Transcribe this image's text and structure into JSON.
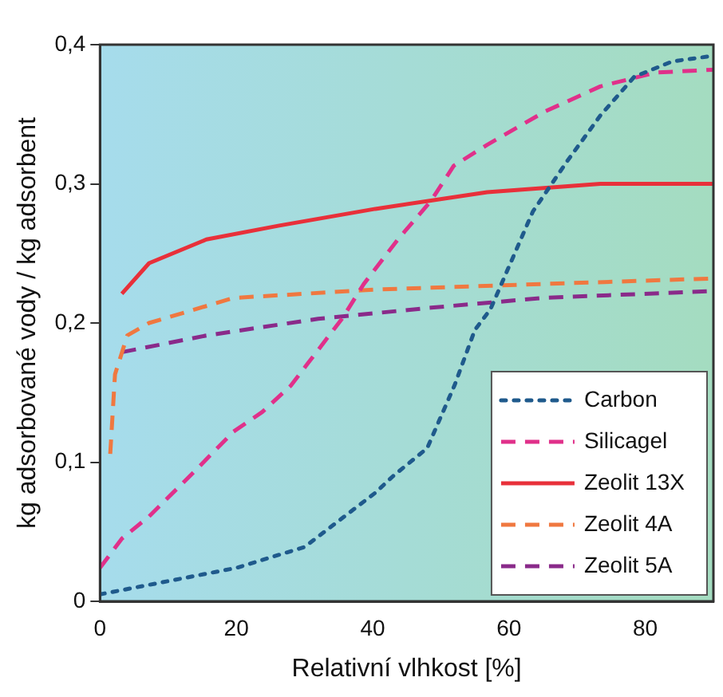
{
  "chart_data": {
    "type": "line",
    "xlabel": "Relativní vlhkost [%]",
    "ylabel": "kg adsorbované vody / kg adsorbent",
    "xlim": [
      0,
      90
    ],
    "xticks": [
      0,
      20,
      40,
      60,
      80
    ],
    "ylim": [
      0,
      0.4
    ],
    "yticks": [
      {
        "value": 0,
        "label": "0"
      },
      {
        "value": 0.1,
        "label": "0,1"
      },
      {
        "value": 0.2,
        "label": "0,2"
      },
      {
        "value": 0.3,
        "label": "0,3"
      },
      {
        "value": 0.4,
        "label": "0,4"
      }
    ],
    "grid": false,
    "legend": "bottom right",
    "marker": "none",
    "series": [
      {
        "name": "Carbon",
        "color": "#1f5a8c",
        "line_style": "dotted",
        "x": [
          0,
          20,
          30,
          40.4,
          43,
          48,
          52,
          55,
          57.3,
          63.5,
          68.5,
          73.4,
          78.4,
          84,
          90
        ],
        "values": [
          0.005,
          0.024,
          0.039,
          0.078,
          0.09,
          0.11,
          0.155,
          0.195,
          0.21,
          0.28,
          0.316,
          0.349,
          0.377,
          0.388,
          0.392
        ]
      },
      {
        "name": "Silicagel",
        "color": "#e0308a",
        "line_style": "dashed",
        "x": [
          0,
          3.2,
          7.2,
          14,
          19.6,
          23.8,
          28,
          30.5,
          35.5,
          38.7,
          43.7,
          48.6,
          51.9,
          56.8,
          65.3,
          73.4,
          81.6,
          90
        ],
        "values": [
          0.024,
          0.045,
          0.061,
          0.094,
          0.122,
          0.136,
          0.155,
          0.171,
          0.203,
          0.228,
          0.26,
          0.288,
          0.313,
          0.328,
          0.352,
          0.37,
          0.38,
          0.382
        ]
      },
      {
        "name": "Zeolit 13X",
        "color": "#e8303a",
        "line_style": "solid",
        "x": [
          3.2,
          7.2,
          15.6,
          26.3,
          40.4,
          56.8,
          73.4,
          90
        ],
        "values": [
          0.221,
          0.243,
          0.26,
          0.27,
          0.282,
          0.294,
          0.3,
          0.3
        ]
      },
      {
        "name": "Zeolit 4A",
        "color": "#f07840",
        "line_style": "dashed",
        "x": [
          1.5,
          2.2,
          4,
          7.2,
          19.6,
          40.4,
          65,
          90
        ],
        "values": [
          0.106,
          0.163,
          0.191,
          0.2,
          0.218,
          0.224,
          0.228,
          0.232
        ]
      },
      {
        "name": "Zeolit 5A",
        "color": "#8a2a8a",
        "line_style": "dashed",
        "x": [
          3.2,
          15.6,
          32,
          48.6,
          65,
          90
        ],
        "values": [
          0.179,
          0.191,
          0.203,
          0.211,
          0.218,
          0.223
        ]
      }
    ]
  }
}
